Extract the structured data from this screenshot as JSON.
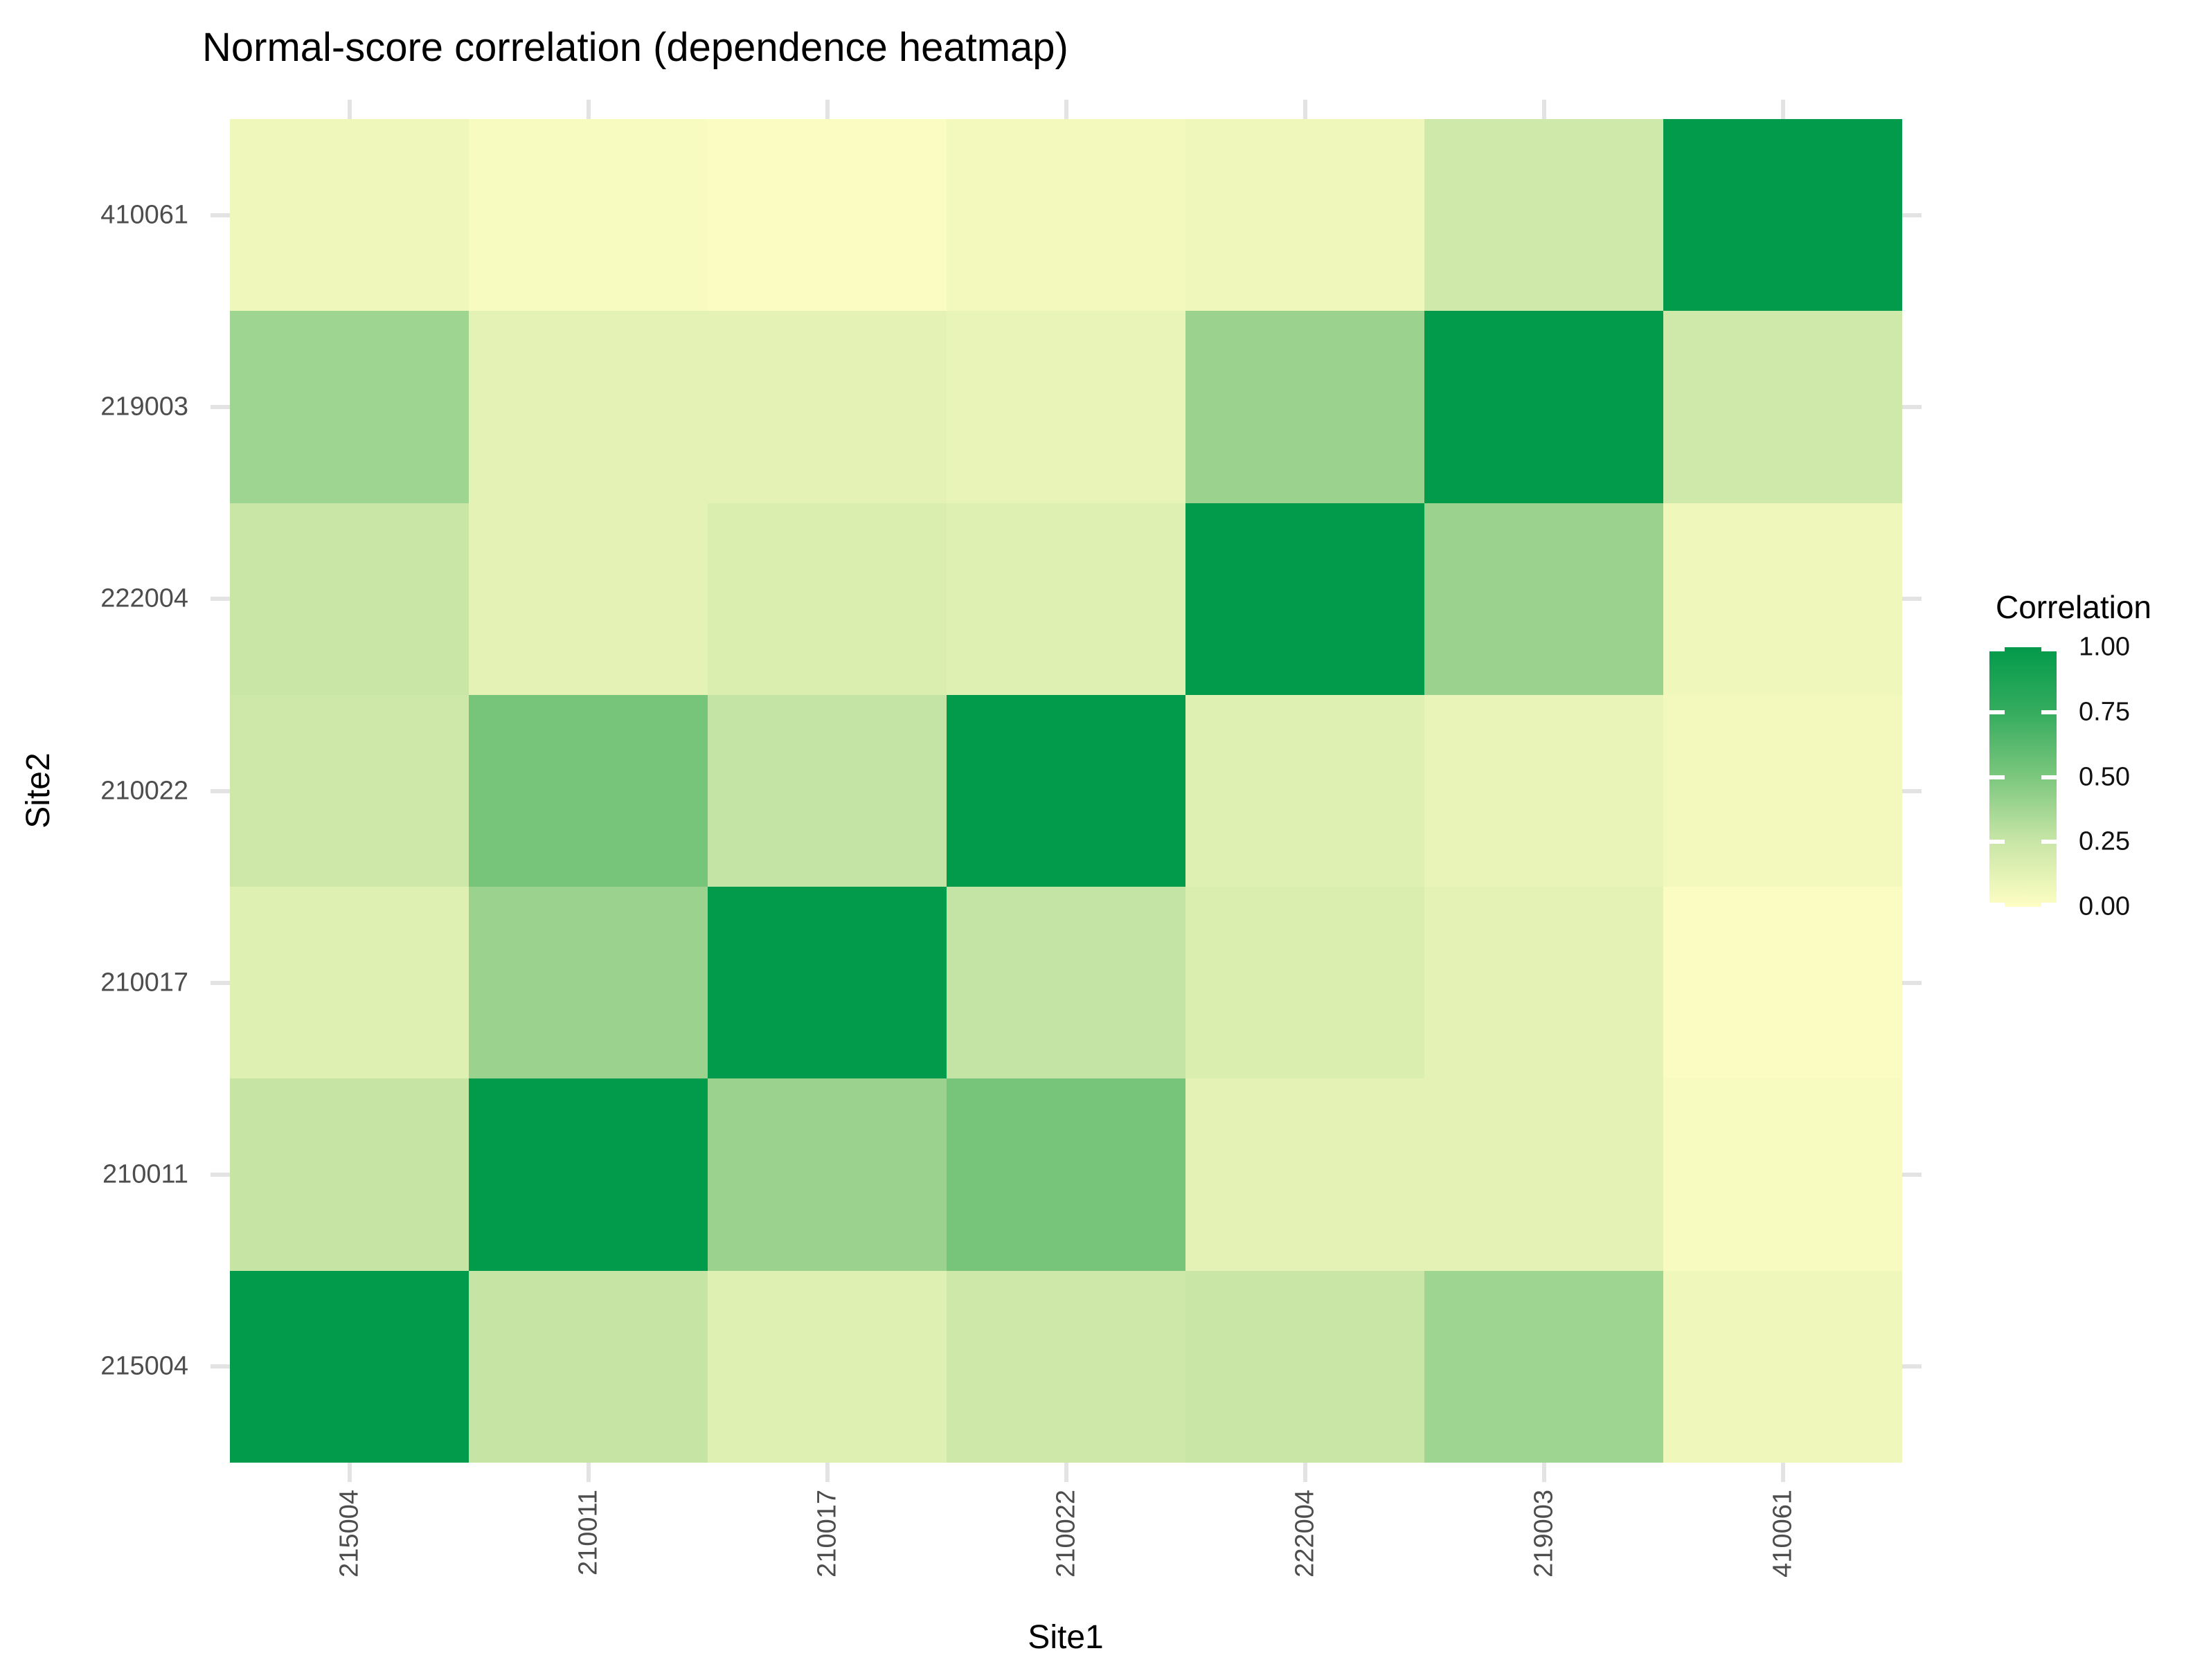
{
  "title": "Normal-score correlation (dependence heatmap)",
  "axes": {
    "x_title": "Site1",
    "y_title": "Site2",
    "x_tick_labels": [
      "215004",
      "210011",
      "210017",
      "210022",
      "222004",
      "219003",
      "410061"
    ],
    "y_tick_labels_top_to_bottom": [
      "410061",
      "219003",
      "222004",
      "210022",
      "210017",
      "210011",
      "215004"
    ]
  },
  "legend": {
    "title": "Correlation",
    "tick_labels": [
      "1.00",
      "0.75",
      "0.50",
      "0.25",
      "0.00"
    ],
    "tick_values": [
      1.0,
      0.75,
      0.5,
      0.25,
      0.0
    ]
  },
  "colors": {
    "background": "#FFFFFF",
    "title_text": "#000000",
    "axis_title_text": "#000000",
    "axis_tick_text": "#4D4D4D",
    "tick_mark": "#E3E3E3",
    "legend_text": "#111111",
    "scale_low": "#FEFEC3",
    "scale_high": "#029A4B",
    "scale_stops": [
      {
        "value": 0.0,
        "color": "#FEFEC3"
      },
      {
        "value": 0.25,
        "color": "#C9E6A7"
      },
      {
        "value": 0.5,
        "color": "#7CC77E"
      },
      {
        "value": 0.75,
        "color": "#35AC5E"
      },
      {
        "value": 1.0,
        "color": "#029A4B"
      }
    ]
  },
  "chart_data": {
    "type": "heatmap",
    "title": "Normal-score correlation (dependence heatmap)",
    "xlabel": "Site1",
    "ylabel": "Site2",
    "legend_title": "Correlation",
    "legend_position": "right",
    "value_range": [
      0.0,
      1.0
    ],
    "x_categories": [
      "215004",
      "210011",
      "210017",
      "210022",
      "222004",
      "219003",
      "410061"
    ],
    "y_categories_top_to_bottom": [
      "410061",
      "219003",
      "222004",
      "210022",
      "210017",
      "210011",
      "215004"
    ],
    "values_rows_top_to_bottom": [
      [
        0.07,
        0.03,
        0.02,
        0.05,
        0.07,
        0.22,
        1.0
      ],
      [
        0.39,
        0.12,
        0.12,
        0.1,
        0.4,
        1.0,
        0.22
      ],
      [
        0.25,
        0.12,
        0.17,
        0.15,
        1.0,
        0.4,
        0.07
      ],
      [
        0.23,
        0.52,
        0.27,
        1.0,
        0.15,
        0.1,
        0.05
      ],
      [
        0.15,
        0.4,
        1.0,
        0.27,
        0.17,
        0.12,
        0.02
      ],
      [
        0.26,
        1.0,
        0.4,
        0.52,
        0.12,
        0.12,
        0.03
      ],
      [
        1.0,
        0.26,
        0.15,
        0.23,
        0.25,
        0.39,
        0.07
      ]
    ]
  }
}
